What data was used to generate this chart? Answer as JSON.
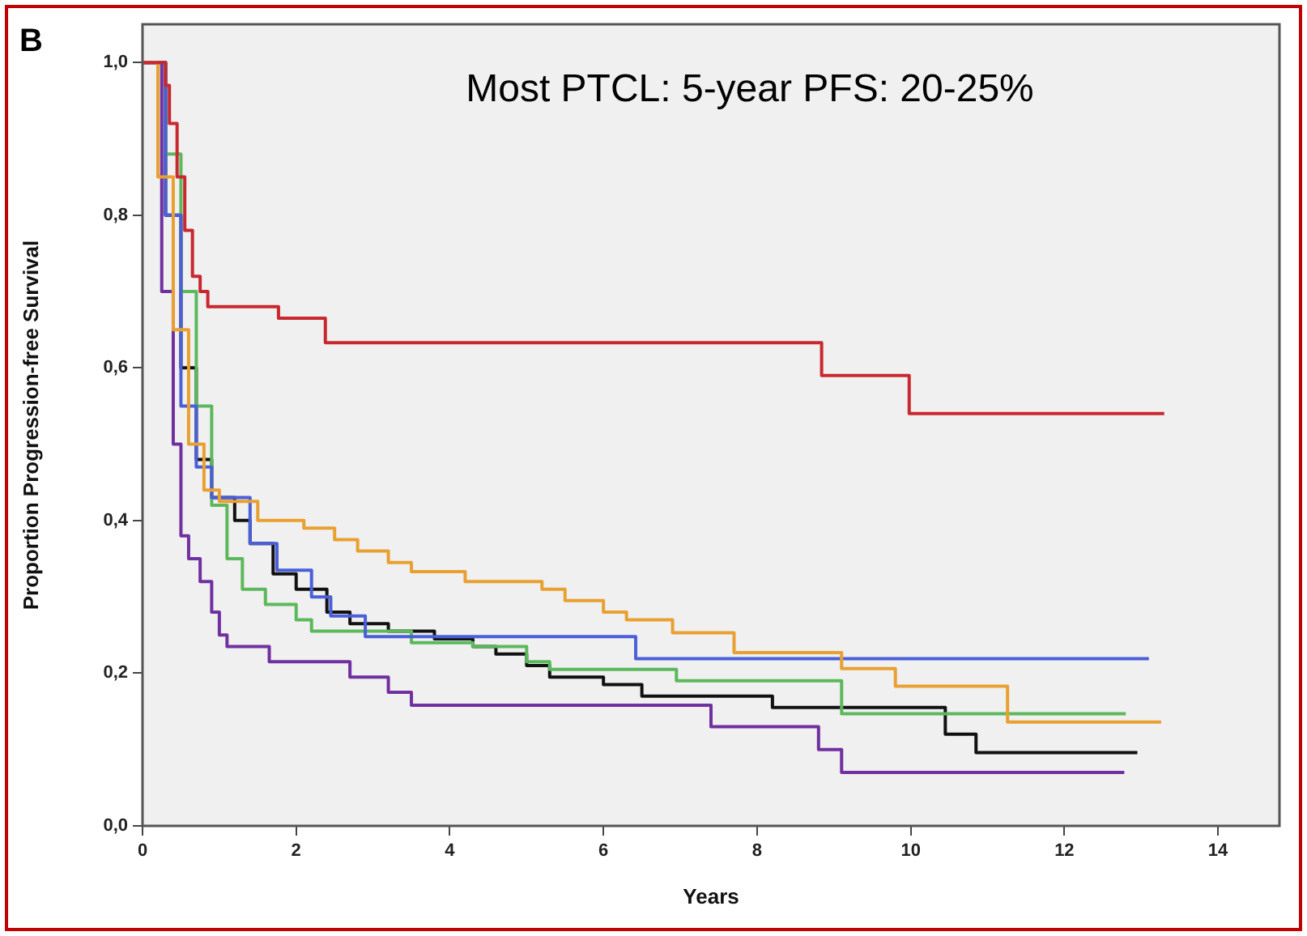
{
  "chart_data": {
    "type": "step",
    "xlabel": "Years",
    "ylabel": "Proportion Progression-free Survival",
    "annotations": [
      "B",
      "Most PTCL: 5-year PFS: 20-25%"
    ],
    "xlim": [
      0,
      14.8
    ],
    "xticks": [
      0,
      2,
      4,
      6,
      8,
      10,
      12,
      14
    ],
    "ylim": [
      0,
      1.05
    ],
    "yticks": [
      {
        "value": 0,
        "label": "0,0"
      },
      {
        "value": 0.2,
        "label": "0,2"
      },
      {
        "value": 0.4,
        "label": "0,4"
      },
      {
        "value": 0.6,
        "label": "0,6"
      },
      {
        "value": 0.8,
        "label": "0,8"
      },
      {
        "value": 1,
        "label": "1,0"
      }
    ],
    "grid": false,
    "legend": false,
    "marker": "none",
    "line_style": "solid",
    "series": [
      {
        "color": "#c8282f",
        "x": [
          0,
          0.3,
          0.35,
          0.45,
          0.55,
          0.65,
          0.75,
          0.85,
          1.77,
          2.38,
          8.84,
          9.98,
          13.3
        ],
        "values": [
          1,
          0.97,
          0.92,
          0.85,
          0.78,
          0.72,
          0.7,
          0.68,
          0.665,
          0.633,
          0.59,
          0.54,
          0.54
        ]
      },
      {
        "color": "#e8a030",
        "x": [
          0,
          0.2,
          0.4,
          0.6,
          0.8,
          1.0,
          1.5,
          2.1,
          2.5,
          2.8,
          3.2,
          3.5,
          4.2,
          5.2,
          5.5,
          6.0,
          6.3,
          6.9,
          7.7,
          9.1,
          9.8,
          11.26,
          13.26
        ],
        "values": [
          1,
          0.85,
          0.65,
          0.5,
          0.44,
          0.425,
          0.4,
          0.39,
          0.375,
          0.36,
          0.345,
          0.333,
          0.32,
          0.31,
          0.295,
          0.28,
          0.27,
          0.253,
          0.227,
          0.206,
          0.183,
          0.136,
          0.136
        ]
      },
      {
        "color": "#4a5fd8",
        "x": [
          0,
          0.3,
          0.5,
          0.7,
          0.9,
          1.4,
          1.75,
          2.2,
          2.45,
          2.9,
          6.42,
          13.1
        ],
        "values": [
          1,
          0.8,
          0.55,
          0.47,
          0.43,
          0.37,
          0.335,
          0.3,
          0.275,
          0.248,
          0.219,
          0.219
        ]
      },
      {
        "color": "#5cb85c",
        "x": [
          0,
          0.3,
          0.5,
          0.7,
          0.9,
          1.1,
          1.3,
          1.6,
          2.0,
          2.2,
          3.5,
          4.3,
          5.0,
          5.3,
          6.95,
          9.1,
          12.8
        ],
        "values": [
          1,
          0.88,
          0.7,
          0.55,
          0.42,
          0.35,
          0.31,
          0.29,
          0.27,
          0.255,
          0.24,
          0.235,
          0.215,
          0.205,
          0.19,
          0.147,
          0.147
        ]
      },
      {
        "color": "#111111",
        "x": [
          0,
          0.3,
          0.5,
          0.7,
          0.9,
          1.2,
          1.4,
          1.7,
          2.0,
          2.4,
          2.7,
          3.2,
          3.8,
          4.3,
          4.6,
          5.0,
          5.3,
          6.0,
          6.5,
          8.2,
          10.45,
          10.85,
          12.95
        ],
        "values": [
          1,
          0.8,
          0.6,
          0.48,
          0.43,
          0.4,
          0.37,
          0.33,
          0.31,
          0.28,
          0.265,
          0.255,
          0.245,
          0.235,
          0.225,
          0.21,
          0.195,
          0.185,
          0.17,
          0.155,
          0.12,
          0.096,
          0.096
        ]
      },
      {
        "color": "#7030a0",
        "x": [
          0,
          0.25,
          0.4,
          0.5,
          0.6,
          0.75,
          0.9,
          1.0,
          1.1,
          1.65,
          2.7,
          3.2,
          3.5,
          7.4,
          8.8,
          9.1,
          12.78
        ],
        "values": [
          1,
          0.7,
          0.5,
          0.38,
          0.35,
          0.32,
          0.28,
          0.25,
          0.235,
          0.215,
          0.195,
          0.175,
          0.158,
          0.13,
          0.1,
          0.07,
          0.07
        ]
      }
    ]
  }
}
